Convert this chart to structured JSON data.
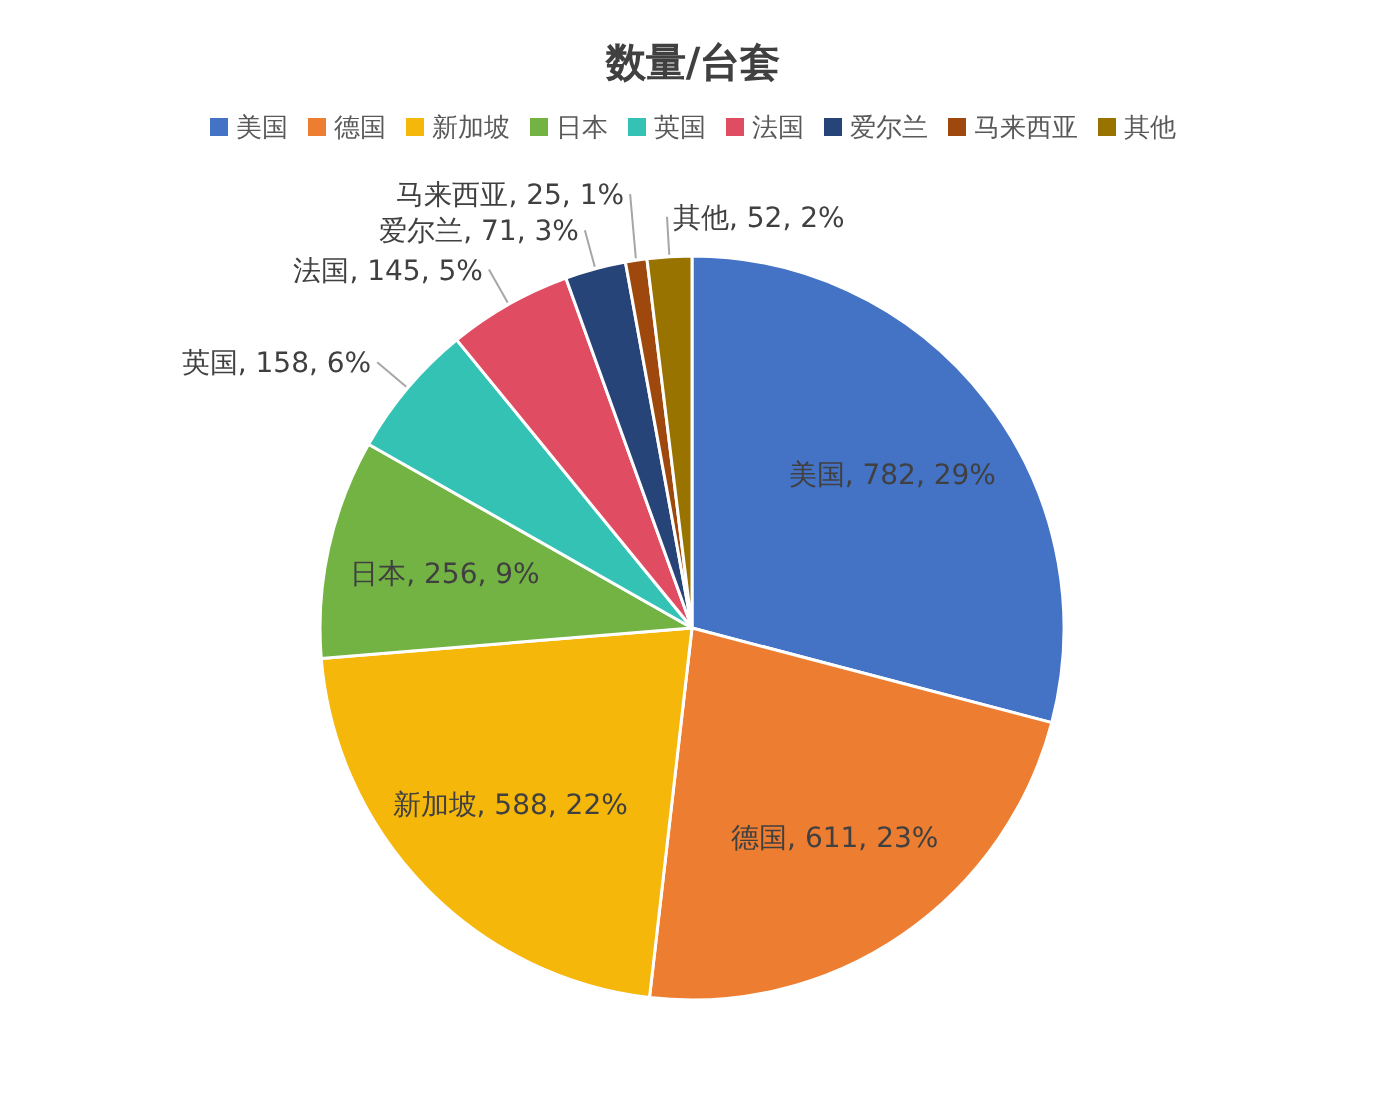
{
  "chart_data": {
    "type": "pie",
    "title": "数量/台套",
    "categories": [
      "美国",
      "德国",
      "新加坡",
      "日本",
      "英国",
      "法国",
      "爱尔兰",
      "马来西亚",
      "其他"
    ],
    "values": [
      782,
      611,
      588,
      256,
      158,
      145,
      71,
      25,
      52
    ],
    "colors": [
      "#4472c4",
      "#ed7d31",
      "#f5b70a",
      "#72b343",
      "#33c2b4",
      "#e04d62",
      "#264478",
      "#9e480e",
      "#997300"
    ],
    "value_labels": [
      "美国, 782, 29%",
      "德国, 611, 23%",
      "新加坡, 588, 22%",
      "日本, 256, 9%",
      "英国, 158, 6%",
      "法国, 145, 5%",
      "爱尔兰, 71, 3%",
      "马来西亚, 25, 1%",
      "其他, 52, 2%"
    ],
    "legend": "top"
  }
}
